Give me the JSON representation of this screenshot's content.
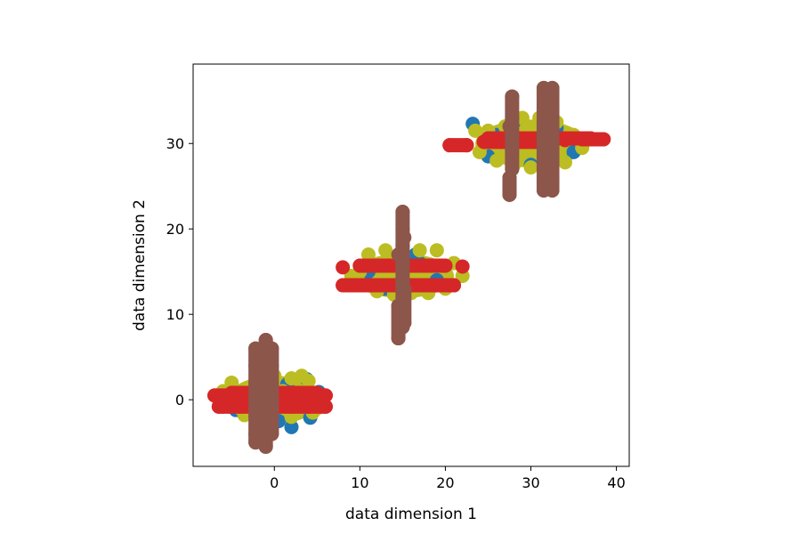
{
  "chart_data": {
    "type": "scatter",
    "title": "",
    "xlabel": "data dimension 1",
    "ylabel": "data dimension 2",
    "xlim": [
      -9.5,
      41.5
    ],
    "ylim": [
      -7.8,
      39.3
    ],
    "x_ticks": [
      0,
      10,
      20,
      30,
      40
    ],
    "y_ticks": [
      0,
      10,
      20,
      30
    ],
    "grid": false,
    "legend": "none",
    "clusters": [
      {
        "cx": 0,
        "cy": 0,
        "blob_rx": 5.5,
        "blob_ry": 2.8
      },
      {
        "cx": 15,
        "cy": 14.5,
        "blob_rx": 6.0,
        "blob_ry": 2.6
      },
      {
        "cx": 30,
        "cy": 30,
        "blob_rx": 6.5,
        "blob_ry": 2.8
      }
    ],
    "series": [
      {
        "color": "#1f77b4",
        "role": "base points",
        "points": [
          [
            -5.5,
            0.5
          ],
          [
            -3.2,
            -1.5
          ],
          [
            2,
            -3.2
          ],
          [
            4.2,
            -2.1
          ],
          [
            3.8,
            2.4
          ],
          [
            -1.5,
            2.3
          ],
          [
            1.5,
            1.8
          ],
          [
            -4.5,
            -1.2
          ],
          [
            5.2,
            0.9
          ],
          [
            0.5,
            -2.5
          ],
          [
            13,
            13
          ],
          [
            17,
            16
          ],
          [
            11,
            15
          ],
          [
            19,
            14
          ],
          [
            15,
            12.5
          ],
          [
            16.5,
            17
          ],
          [
            23.2,
            32.3
          ],
          [
            26,
            31
          ],
          [
            35,
            29
          ],
          [
            30,
            27.5
          ],
          [
            28,
            32.5
          ],
          [
            33,
            31.8
          ],
          [
            36,
            30.5
          ],
          [
            25,
            28.5
          ]
        ]
      },
      {
        "color": "#bcbd22",
        "role": "noisy points",
        "points": [
          [
            -5,
            2
          ],
          [
            -4,
            -1
          ],
          [
            -2,
            2.5
          ],
          [
            0,
            2.8
          ],
          [
            2,
            2.5
          ],
          [
            4,
            2.2
          ],
          [
            5.5,
            0
          ],
          [
            4.5,
            -1.5
          ],
          [
            2,
            -2
          ],
          [
            -1,
            -2.5
          ],
          [
            -3.5,
            -1.8
          ],
          [
            -5.5,
            -0.5
          ],
          [
            3.2,
            2.8
          ],
          [
            -3,
            1
          ],
          [
            1,
            1
          ],
          [
            5,
            -1
          ],
          [
            -6,
            1
          ],
          [
            10,
            15
          ],
          [
            11,
            17
          ],
          [
            13,
            17.5
          ],
          [
            15,
            17
          ],
          [
            17,
            17.5
          ],
          [
            19,
            17.5
          ],
          [
            21,
            16
          ],
          [
            22,
            14.5
          ],
          [
            20,
            13
          ],
          [
            18,
            12.5
          ],
          [
            16,
            12.5
          ],
          [
            14,
            12.3
          ],
          [
            12,
            12.7
          ],
          [
            10,
            13.5
          ],
          [
            9,
            14.5
          ],
          [
            24,
            29
          ],
          [
            25,
            31.5
          ],
          [
            27,
            32
          ],
          [
            29,
            33
          ],
          [
            31,
            33
          ],
          [
            33,
            32.5
          ],
          [
            35,
            31
          ],
          [
            36,
            29.5
          ],
          [
            34,
            27.8
          ],
          [
            32,
            27.5
          ],
          [
            30,
            27.2
          ],
          [
            28,
            27.5
          ],
          [
            26,
            28
          ],
          [
            24.5,
            30
          ],
          [
            23.5,
            31.5
          ],
          [
            29,
            30
          ],
          [
            33,
            29
          ]
        ]
      },
      {
        "color": "#d62728",
        "role": "horizontal stroke",
        "points": [
          [
            -7,
            0.5
          ],
          [
            -6.5,
            -0.8
          ],
          [
            -4,
            0.5
          ],
          [
            -2,
            0.8
          ],
          [
            0,
            0.5
          ],
          [
            2,
            0.5
          ],
          [
            4,
            0.8
          ],
          [
            6,
            0.5
          ],
          [
            -6,
            -0.8
          ],
          [
            -4,
            -0.8
          ],
          [
            -2,
            -0.8
          ],
          [
            0,
            -0.8
          ],
          [
            2,
            -0.8
          ],
          [
            4,
            -0.8
          ],
          [
            6,
            -0.8
          ],
          [
            -5,
            0.8
          ],
          [
            -3,
            0.8
          ],
          [
            1,
            0.8
          ],
          [
            3,
            0.8
          ],
          [
            5,
            0.8
          ],
          [
            8,
            15.5
          ],
          [
            10,
            15.7
          ],
          [
            12,
            15.7
          ],
          [
            14,
            15.7
          ],
          [
            16,
            15.7
          ],
          [
            18,
            15.7
          ],
          [
            20,
            15.7
          ],
          [
            22,
            15.6
          ],
          [
            8,
            13.4
          ],
          [
            10,
            13.4
          ],
          [
            12,
            13.4
          ],
          [
            14,
            13.4
          ],
          [
            16,
            13.4
          ],
          [
            18,
            13.4
          ],
          [
            20,
            13.4
          ],
          [
            21,
            13.4
          ],
          [
            20.5,
            29.8
          ],
          [
            22.5,
            29.8
          ],
          [
            24.5,
            30.2
          ],
          [
            26.5,
            30.2
          ],
          [
            28.5,
            30.2
          ],
          [
            30.5,
            30.2
          ],
          [
            32,
            30.2
          ],
          [
            34,
            30.4
          ],
          [
            36,
            30.5
          ],
          [
            38.5,
            30.5
          ],
          [
            25,
            30.6
          ],
          [
            27,
            30.6
          ],
          [
            29,
            30.6
          ],
          [
            31,
            30.6
          ],
          [
            33,
            30.6
          ],
          [
            35,
            30.6
          ],
          [
            37,
            30.6
          ]
        ]
      },
      {
        "color": "#8c564b",
        "role": "vertical stroke",
        "points": [
          [
            -2.2,
            6
          ],
          [
            -2.2,
            4
          ],
          [
            -2.2,
            2
          ],
          [
            -2.2,
            0
          ],
          [
            -2.2,
            -2
          ],
          [
            -2.2,
            -4
          ],
          [
            -2.2,
            -5
          ],
          [
            -1,
            7
          ],
          [
            -1,
            5
          ],
          [
            -1,
            3
          ],
          [
            -1,
            1
          ],
          [
            -1,
            -1
          ],
          [
            -1,
            -3
          ],
          [
            -1,
            -5.5
          ],
          [
            -0.3,
            6
          ],
          [
            -0.3,
            4
          ],
          [
            -0.3,
            2
          ],
          [
            -0.3,
            0
          ],
          [
            -0.3,
            -2
          ],
          [
            -0.3,
            -4
          ],
          [
            15,
            22
          ],
          [
            15,
            20
          ],
          [
            15,
            18
          ],
          [
            15,
            16
          ],
          [
            15,
            14
          ],
          [
            15,
            12
          ],
          [
            15,
            10
          ],
          [
            15,
            8.5
          ],
          [
            14.5,
            17
          ],
          [
            14.5,
            11
          ],
          [
            14.5,
            7.2
          ],
          [
            15.2,
            19
          ],
          [
            15.2,
            13
          ],
          [
            15.2,
            9
          ],
          [
            27.8,
            35.5
          ],
          [
            27.8,
            33
          ],
          [
            27.8,
            31
          ],
          [
            27.8,
            29
          ],
          [
            27.8,
            27
          ],
          [
            27.5,
            24
          ],
          [
            27.5,
            26
          ],
          [
            27.5,
            32
          ],
          [
            31.5,
            36.5
          ],
          [
            31.5,
            34
          ],
          [
            31.5,
            32
          ],
          [
            31.5,
            30
          ],
          [
            31.5,
            28
          ],
          [
            31.5,
            26
          ],
          [
            31.5,
            24.5
          ],
          [
            32.5,
            36.5
          ],
          [
            32.5,
            34
          ],
          [
            32.5,
            32
          ],
          [
            32.5,
            30
          ],
          [
            32.5,
            28
          ],
          [
            32.5,
            26
          ],
          [
            32.5,
            24.5
          ]
        ]
      }
    ]
  }
}
